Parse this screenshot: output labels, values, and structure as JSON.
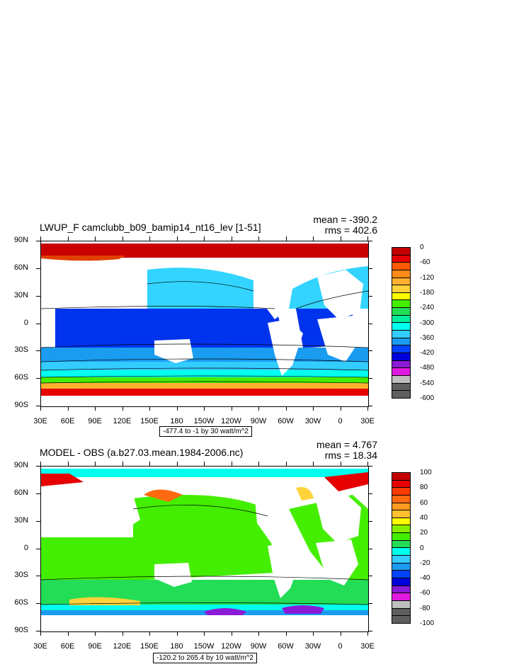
{
  "panels": [
    {
      "id": "top",
      "title": "LWUP_F camclubb_b09_bamip14_nt16_lev [1-51]",
      "mean": "mean = -390.2",
      "rms": "rms = 402.6",
      "range_text": "-477.4 to -1 by 30 watt/m^2",
      "lat_labels": [
        "90N",
        "60N",
        "30N",
        "0",
        "30S",
        "60S",
        "90S"
      ],
      "lon_labels": [
        "30E",
        "60E",
        "90E",
        "120E",
        "150E",
        "180",
        "150W",
        "120W",
        "90W",
        "60W",
        "30W",
        "0",
        "30E"
      ],
      "colorbar": {
        "labels": [
          "0",
          "-60",
          "-120",
          "-180",
          "-240",
          "-300",
          "-360",
          "-420",
          "-480",
          "-540",
          "-600"
        ],
        "colors": [
          "#c40000",
          "#e60000",
          "#ff5a00",
          "#ff8c1a",
          "#ffb030",
          "#ffd23c",
          "#ffff00",
          "#44ee00",
          "#22dd55",
          "#00ee99",
          "#00ffee",
          "#33ccff",
          "#1a9cf0",
          "#0044ff",
          "#0000dd",
          "#8a1ad6",
          "#e01ae0",
          "#bfbfbf",
          "#5f5f5f",
          "#5f5f5f"
        ]
      }
    },
    {
      "id": "bottom",
      "title": "MODEL - OBS (a.b27.03.mean.1984-2006.nc)",
      "mean": "mean = 4.767",
      "rms": "rms = 18.34",
      "range_text": "-120.2 to 265.4 by 10 watt/m^2",
      "lat_labels": [
        "90N",
        "60N",
        "30N",
        "0",
        "30S",
        "60S",
        "90S"
      ],
      "lon_labels": [
        "30E",
        "60E",
        "90E",
        "120E",
        "150E",
        "180",
        "150W",
        "120W",
        "90W",
        "60W",
        "30W",
        "0",
        "30E"
      ],
      "colorbar": {
        "labels": [
          "100",
          "80",
          "60",
          "40",
          "20",
          "0",
          "-20",
          "-40",
          "-60",
          "-80",
          "-100"
        ],
        "colors": [
          "#c40000",
          "#e60000",
          "#ff3a00",
          "#ff6a10",
          "#ff9a20",
          "#ffc030",
          "#ffff00",
          "#88ee00",
          "#44ee00",
          "#22dd55",
          "#00ffee",
          "#33ccff",
          "#1a9cf0",
          "#0044ff",
          "#0000dd",
          "#8a1ad6",
          "#e01ae0",
          "#bfbfbf",
          "#5f5f5f",
          "#5f5f5f"
        ]
      }
    }
  ]
}
